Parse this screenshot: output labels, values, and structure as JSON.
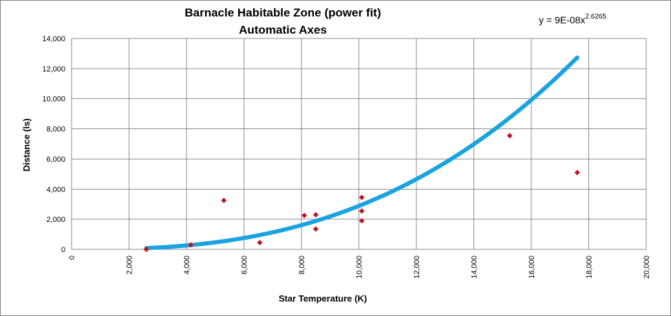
{
  "chart_data": {
    "type": "scatter",
    "title_lines": [
      "Barnacle  Habitable  Zone  (power fit)",
      "Automatic  Axes"
    ],
    "xlabel": "Star Temperature (K)",
    "ylabel": "Distance (ls)",
    "xlim": [
      0,
      20000
    ],
    "ylim": [
      0,
      14000
    ],
    "x_ticks": [
      0,
      2000,
      4000,
      6000,
      8000,
      10000,
      12000,
      14000,
      16000,
      18000,
      20000
    ],
    "x_tick_labels": [
      "0",
      "2,000",
      "4,000",
      "6,000",
      "8,000",
      "10,000",
      "12,000",
      "14,000",
      "16,000",
      "18,000",
      "20,000"
    ],
    "y_ticks": [
      0,
      2000,
      4000,
      6000,
      8000,
      10000,
      12000,
      14000
    ],
    "y_tick_labels": [
      "0",
      "2,000",
      "4,000",
      "6,000",
      "8,000",
      "10,000",
      "12,000",
      "14,000"
    ],
    "grid": true,
    "marker_color": "#c0141e",
    "trend_color": "#1aa3e0",
    "points": [
      {
        "x": 2600,
        "y": 0
      },
      {
        "x": 4150,
        "y": 300
      },
      {
        "x": 5300,
        "y": 3250
      },
      {
        "x": 6550,
        "y": 450
      },
      {
        "x": 8100,
        "y": 2250
      },
      {
        "x": 8500,
        "y": 2300
      },
      {
        "x": 8500,
        "y": 1350
      },
      {
        "x": 10100,
        "y": 3450
      },
      {
        "x": 10100,
        "y": 2550
      },
      {
        "x": 10100,
        "y": 1900
      },
      {
        "x": 15250,
        "y": 7550
      },
      {
        "x": 17600,
        "y": 5100
      }
    ],
    "trendline": {
      "type": "power",
      "coefficient": 9e-08,
      "exponent": 2.6265,
      "x_start": 2600,
      "x_end": 17600,
      "equation_base": "y = 9E-08x",
      "equation_exponent": "2.6265"
    }
  }
}
